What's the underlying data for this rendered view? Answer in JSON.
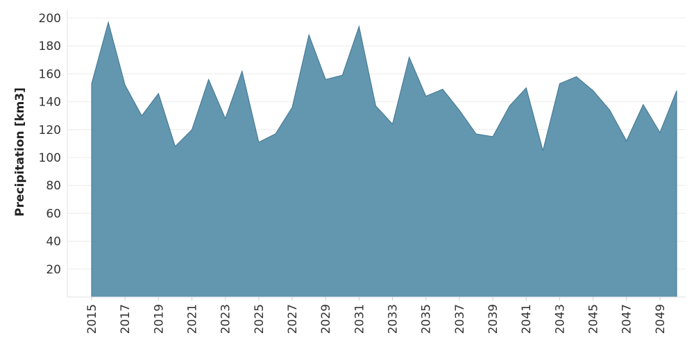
{
  "chart_data": {
    "type": "area",
    "ylabel": "Precipitation [km3]",
    "xlabel": "",
    "ylim": [
      0,
      200
    ],
    "yticks": [
      20,
      40,
      60,
      80,
      100,
      120,
      140,
      160,
      180,
      200
    ],
    "xticks": [
      2015,
      2017,
      2019,
      2021,
      2023,
      2025,
      2027,
      2029,
      2031,
      2033,
      2035,
      2037,
      2039,
      2041,
      2043,
      2045,
      2047,
      2049
    ],
    "grid": true,
    "x": [
      2015,
      2016,
      2017,
      2018,
      2019,
      2020,
      2021,
      2022,
      2023,
      2024,
      2025,
      2026,
      2027,
      2028,
      2029,
      2030,
      2031,
      2032,
      2033,
      2034,
      2035,
      2036,
      2037,
      2038,
      2039,
      2040,
      2041,
      2042,
      2043,
      2044,
      2045,
      2046,
      2047,
      2048,
      2049,
      2050
    ],
    "series": [
      {
        "values": [
          153,
          197,
          152,
          130,
          146,
          108,
          120,
          156,
          128,
          162,
          111,
          117,
          136,
          188,
          156,
          159,
          194,
          137,
          124,
          172,
          144,
          149,
          134,
          117,
          115,
          137,
          150,
          105,
          153,
          158,
          148,
          134,
          112,
          138,
          118,
          148
        ],
        "color": "#5b90ab",
        "stroke": "#3f7590"
      }
    ]
  }
}
